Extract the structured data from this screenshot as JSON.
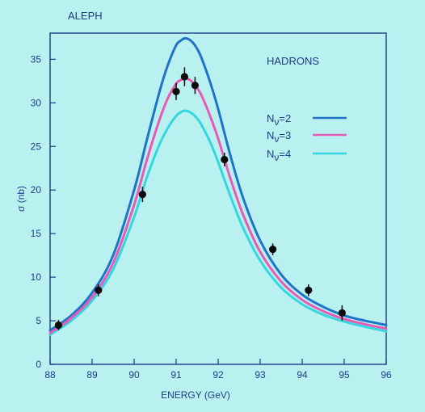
{
  "header": {
    "experiment": "ALEPH",
    "process": "HADRONS"
  },
  "colors": {
    "background": "#b9f1f1",
    "frame": "#1c3c86",
    "nv2": "#1f73c9",
    "nv3": "#e85ab3",
    "nv4": "#36d6df",
    "points": "#0a0a0a"
  },
  "chart_data": {
    "type": "line",
    "title": "ALEPH",
    "annotation": "HADRONS",
    "xlabel": "ENERGY (GeV)",
    "ylabel": "σ (nb)",
    "xlim": [
      88,
      96
    ],
    "ylim": [
      0,
      38
    ],
    "xticks": [
      "88",
      "89",
      "90",
      "91",
      "92",
      "93",
      "94",
      "95",
      "96"
    ],
    "yticks": [
      "0",
      "5",
      "10",
      "15",
      "20",
      "25",
      "30",
      "35"
    ],
    "grid": false,
    "legend_position": "right",
    "series": [
      {
        "name": "Nν=2",
        "label_main": "N",
        "label_sub": "ν",
        "label_rest": "=2",
        "color": "#1f73c9",
        "x": [
          88.0,
          88.5,
          89.0,
          89.5,
          90.0,
          90.3,
          90.6,
          90.8,
          91.0,
          91.1,
          91.2,
          91.3,
          91.4,
          91.5,
          91.6,
          91.8,
          92.0,
          92.3,
          92.6,
          93.0,
          93.5,
          94.0,
          94.5,
          95.0,
          95.5,
          96.0
        ],
        "values": [
          3.9,
          5.6,
          8.2,
          12.5,
          20.0,
          25.7,
          31.2,
          34.3,
          36.6,
          37.1,
          37.4,
          37.3,
          36.9,
          36.2,
          35.2,
          32.5,
          29.3,
          23.8,
          19.0,
          14.2,
          10.3,
          8.0,
          6.6,
          5.6,
          5.0,
          4.5
        ]
      },
      {
        "name": "Nν=3",
        "label_main": "N",
        "label_sub": "ν",
        "label_rest": "=3",
        "color": "#e85ab3",
        "x": [
          88.0,
          88.5,
          89.0,
          89.5,
          90.0,
          90.3,
          90.6,
          90.8,
          91.0,
          91.1,
          91.2,
          91.3,
          91.4,
          91.5,
          91.6,
          91.8,
          92.0,
          92.3,
          92.6,
          93.0,
          93.5,
          94.0,
          94.5,
          95.0,
          95.5,
          96.0
        ],
        "values": [
          3.6,
          5.3,
          7.7,
          11.6,
          18.3,
          23.4,
          28.0,
          30.5,
          32.2,
          32.6,
          32.8,
          32.7,
          32.3,
          31.7,
          30.9,
          28.6,
          25.9,
          21.2,
          17.1,
          12.9,
          9.5,
          7.4,
          6.1,
          5.2,
          4.6,
          4.1
        ]
      },
      {
        "name": "Nν=4",
        "label_main": "N",
        "label_sub": "ν",
        "label_rest": "=4",
        "color": "#36d6df",
        "x": [
          88.0,
          88.5,
          89.0,
          89.5,
          90.0,
          90.3,
          90.6,
          90.8,
          91.0,
          91.1,
          91.2,
          91.3,
          91.4,
          91.5,
          91.6,
          91.8,
          92.0,
          92.3,
          92.6,
          93.0,
          93.5,
          94.0,
          94.5,
          95.0,
          95.5,
          96.0
        ],
        "values": [
          3.4,
          5.0,
          7.3,
          10.9,
          16.9,
          21.4,
          25.2,
          27.1,
          28.5,
          28.9,
          29.1,
          29.0,
          28.7,
          28.2,
          27.5,
          25.6,
          23.2,
          19.2,
          15.6,
          11.9,
          8.8,
          6.9,
          5.7,
          4.9,
          4.3,
          3.8
        ]
      }
    ],
    "points": {
      "name": "data",
      "x": [
        88.2,
        89.15,
        90.2,
        91.0,
        91.2,
        91.45,
        92.15,
        93.3,
        94.15,
        94.95
      ],
      "y": [
        4.5,
        8.5,
        19.5,
        31.3,
        33.0,
        32.0,
        23.5,
        13.2,
        8.5,
        5.9
      ],
      "err": [
        0.3,
        0.4,
        0.6,
        0.7,
        0.8,
        0.7,
        0.5,
        0.4,
        0.4,
        0.6
      ]
    }
  }
}
